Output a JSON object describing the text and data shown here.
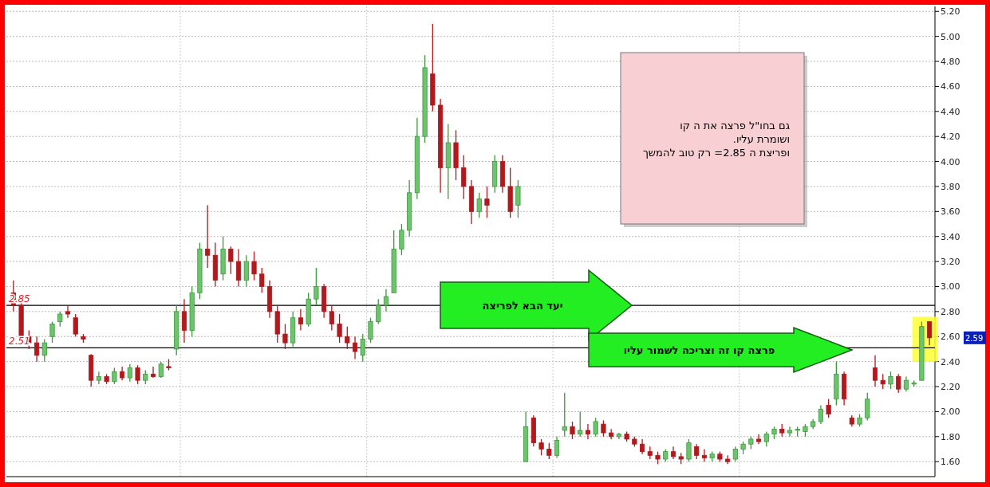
{
  "chart_data": {
    "type": "candlestick",
    "categories": [
      null,
      null,
      null,
      null,
      null,
      null,
      null,
      null,
      null,
      null,
      null,
      null,
      null,
      null,
      null,
      null,
      null,
      null,
      null,
      null,
      null,
      null,
      null,
      null,
      null,
      null,
      null,
      null,
      null,
      null,
      null,
      null,
      null,
      null,
      null,
      null,
      null,
      null,
      null,
      null,
      null,
      null,
      null,
      null,
      null,
      null,
      null,
      null,
      null,
      null,
      null,
      null,
      null,
      null,
      null,
      null,
      null,
      null,
      null,
      null,
      null,
      null,
      null,
      null,
      null,
      null,
      null,
      null,
      null,
      null,
      null,
      null,
      null,
      null,
      null,
      null,
      null,
      null,
      null,
      null,
      null,
      null,
      null,
      null,
      null,
      null,
      null,
      null,
      null,
      null,
      null,
      null,
      null,
      null,
      null,
      null,
      null,
      null,
      null,
      null,
      null,
      null,
      null,
      null,
      null,
      null,
      null,
      null,
      null,
      null,
      null,
      null,
      null,
      null,
      null,
      null,
      null,
      null,
      null
    ],
    "ohlc": [
      [
        2.95,
        3.05,
        2.8,
        2.85
      ],
      [
        2.85,
        2.9,
        2.55,
        2.6
      ],
      [
        2.6,
        2.65,
        2.5,
        2.55
      ],
      [
        2.55,
        2.6,
        2.4,
        2.45
      ],
      [
        2.45,
        2.58,
        2.4,
        2.55
      ],
      [
        2.6,
        2.72,
        2.55,
        2.7
      ],
      [
        2.72,
        2.8,
        2.68,
        2.78
      ],
      [
        2.8,
        2.85,
        2.75,
        2.78
      ],
      [
        2.75,
        2.78,
        2.6,
        2.62
      ],
      [
        2.6,
        2.62,
        2.55,
        2.58
      ],
      [
        2.45,
        2.46,
        2.2,
        2.25
      ],
      [
        2.25,
        2.32,
        2.22,
        2.28
      ],
      [
        2.28,
        2.3,
        2.22,
        2.24
      ],
      [
        2.24,
        2.35,
        2.22,
        2.32
      ],
      [
        2.32,
        2.36,
        2.25,
        2.27
      ],
      [
        2.27,
        2.38,
        2.24,
        2.35
      ],
      [
        2.35,
        2.37,
        2.22,
        2.25
      ],
      [
        2.25,
        2.33,
        2.22,
        2.3
      ],
      [
        2.3,
        2.36,
        2.27,
        2.28
      ],
      [
        2.28,
        2.4,
        2.27,
        2.38
      ],
      [
        2.36,
        2.42,
        2.33,
        2.35
      ],
      [
        2.5,
        2.85,
        2.45,
        2.8
      ],
      [
        2.8,
        2.9,
        2.55,
        2.65
      ],
      [
        2.65,
        3.0,
        2.6,
        2.95
      ],
      [
        2.95,
        3.35,
        2.9,
        3.3
      ],
      [
        3.3,
        3.65,
        3.15,
        3.25
      ],
      [
        3.25,
        3.35,
        3.0,
        3.05
      ],
      [
        3.1,
        3.4,
        3.05,
        3.3
      ],
      [
        3.3,
        3.32,
        3.1,
        3.2
      ],
      [
        3.2,
        3.3,
        3.0,
        3.05
      ],
      [
        3.05,
        3.25,
        3.0,
        3.2
      ],
      [
        3.2,
        3.28,
        3.05,
        3.1
      ],
      [
        3.1,
        3.15,
        2.95,
        3.0
      ],
      [
        3.0,
        3.05,
        2.75,
        2.8
      ],
      [
        2.8,
        2.85,
        2.55,
        2.62
      ],
      [
        2.62,
        2.7,
        2.5,
        2.55
      ],
      [
        2.55,
        2.8,
        2.52,
        2.75
      ],
      [
        2.75,
        2.82,
        2.65,
        2.7
      ],
      [
        2.7,
        2.95,
        2.68,
        2.9
      ],
      [
        2.9,
        3.15,
        2.85,
        3.0
      ],
      [
        3.0,
        3.02,
        2.75,
        2.8
      ],
      [
        2.8,
        2.85,
        2.65,
        2.7
      ],
      [
        2.7,
        2.78,
        2.55,
        2.6
      ],
      [
        2.6,
        2.68,
        2.5,
        2.55
      ],
      [
        2.55,
        2.6,
        2.42,
        2.48
      ],
      [
        2.45,
        2.62,
        2.4,
        2.58
      ],
      [
        2.58,
        2.75,
        2.55,
        2.72
      ],
      [
        2.72,
        2.9,
        2.7,
        2.85
      ],
      [
        2.85,
        2.98,
        2.8,
        2.92
      ],
      [
        2.95,
        3.45,
        2.95,
        3.3
      ],
      [
        3.3,
        3.5,
        3.25,
        3.45
      ],
      [
        3.45,
        3.85,
        3.4,
        3.75
      ],
      [
        3.75,
        4.35,
        3.7,
        4.2
      ],
      [
        4.2,
        4.85,
        4.15,
        4.75
      ],
      [
        4.7,
        5.1,
        4.4,
        4.45
      ],
      [
        4.45,
        4.5,
        3.75,
        3.95
      ],
      [
        3.95,
        4.3,
        3.7,
        4.15
      ],
      [
        4.15,
        4.25,
        3.85,
        3.95
      ],
      [
        3.95,
        4.05,
        3.7,
        3.8
      ],
      [
        3.8,
        3.85,
        3.5,
        3.6
      ],
      [
        3.6,
        3.75,
        3.55,
        3.7
      ],
      [
        3.7,
        3.8,
        3.55,
        3.65
      ],
      [
        3.8,
        4.05,
        3.75,
        4.0
      ],
      [
        4.0,
        4.05,
        3.75,
        3.8
      ],
      [
        3.8,
        3.95,
        3.55,
        3.6
      ],
      [
        3.65,
        3.85,
        3.55,
        3.8
      ],
      [
        1.6,
        2.0,
        1.6,
        1.88
      ],
      [
        1.95,
        1.97,
        1.72,
        1.75
      ],
      [
        1.75,
        1.78,
        1.65,
        1.7
      ],
      [
        1.7,
        1.75,
        1.62,
        1.65
      ],
      [
        1.65,
        1.8,
        1.63,
        1.77
      ],
      [
        1.85,
        2.15,
        1.8,
        1.88
      ],
      [
        1.88,
        1.92,
        1.78,
        1.82
      ],
      [
        1.82,
        2.0,
        1.8,
        1.85
      ],
      [
        1.85,
        1.9,
        1.78,
        1.82
      ],
      [
        1.82,
        1.95,
        1.8,
        1.92
      ],
      [
        1.9,
        1.93,
        1.8,
        1.83
      ],
      [
        1.83,
        1.86,
        1.78,
        1.8
      ],
      [
        1.8,
        1.83,
        1.78,
        1.82
      ],
      [
        1.82,
        1.84,
        1.76,
        1.78
      ],
      [
        1.78,
        1.8,
        1.72,
        1.74
      ],
      [
        1.74,
        1.78,
        1.66,
        1.68
      ],
      [
        1.68,
        1.72,
        1.62,
        1.65
      ],
      [
        1.65,
        1.68,
        1.58,
        1.62
      ],
      [
        1.62,
        1.7,
        1.6,
        1.68
      ],
      [
        1.68,
        1.72,
        1.62,
        1.64
      ],
      [
        1.64,
        1.67,
        1.58,
        1.62
      ],
      [
        1.62,
        1.78,
        1.6,
        1.75
      ],
      [
        1.72,
        1.74,
        1.62,
        1.65
      ],
      [
        1.65,
        1.7,
        1.6,
        1.63
      ],
      [
        1.63,
        1.68,
        1.6,
        1.66
      ],
      [
        1.66,
        1.68,
        1.6,
        1.62
      ],
      [
        1.62,
        1.65,
        1.58,
        1.6
      ],
      [
        1.62,
        1.72,
        1.6,
        1.7
      ],
      [
        1.7,
        1.76,
        1.66,
        1.74
      ],
      [
        1.74,
        1.8,
        1.7,
        1.78
      ],
      [
        1.78,
        1.82,
        1.74,
        1.76
      ],
      [
        1.76,
        1.84,
        1.72,
        1.82
      ],
      [
        1.82,
        1.88,
        1.78,
        1.86
      ],
      [
        1.86,
        1.9,
        1.8,
        1.83
      ],
      [
        1.83,
        1.88,
        1.8,
        1.85
      ],
      [
        1.85,
        1.88,
        1.8,
        1.86
      ],
      [
        1.84,
        1.9,
        1.8,
        1.88
      ],
      [
        1.88,
        1.94,
        1.86,
        1.92
      ],
      [
        1.92,
        2.05,
        1.9,
        2.02
      ],
      [
        2.05,
        2.1,
        1.95,
        1.98
      ],
      [
        2.1,
        2.4,
        2.05,
        2.3
      ],
      [
        2.3,
        2.32,
        2.05,
        2.1
      ],
      [
        1.95,
        1.97,
        1.88,
        1.9
      ],
      [
        1.9,
        1.98,
        1.88,
        1.95
      ],
      [
        1.95,
        2.15,
        1.93,
        2.1
      ],
      [
        2.35,
        2.45,
        2.2,
        2.25
      ],
      [
        2.25,
        2.3,
        2.18,
        2.22
      ],
      [
        2.22,
        2.32,
        2.18,
        2.28
      ],
      [
        2.28,
        2.3,
        2.15,
        2.18
      ],
      [
        2.18,
        2.28,
        2.16,
        2.25
      ],
      [
        2.22,
        2.25,
        2.2,
        2.23
      ],
      [
        2.25,
        2.72,
        2.25,
        2.68
      ],
      [
        2.72,
        2.72,
        2.53,
        2.59
      ]
    ],
    "ylim": [
      1.48,
      5.24
    ],
    "yticks": [
      {
        "value": 1.6,
        "label": "1.60"
      },
      {
        "value": 1.8,
        "label": "1.80"
      },
      {
        "value": 2.0,
        "label": "2.00"
      },
      {
        "value": 2.2,
        "label": "2.20"
      },
      {
        "value": 2.4,
        "label": "2.40"
      },
      {
        "value": 2.6,
        "label": "2.60"
      },
      {
        "value": 2.8,
        "label": "2.80"
      },
      {
        "value": 3.0,
        "label": "3.00"
      },
      {
        "value": 3.2,
        "label": "3.20"
      },
      {
        "value": 3.4,
        "label": "3.40"
      },
      {
        "value": 3.6,
        "label": "3.60"
      },
      {
        "value": 3.8,
        "label": "3.80"
      },
      {
        "value": 4.0,
        "label": "4.00"
      },
      {
        "value": 4.2,
        "label": "4.20"
      },
      {
        "value": 4.4,
        "label": "4.40"
      },
      {
        "value": 4.6,
        "label": "4.60"
      },
      {
        "value": 4.8,
        "label": "4.80"
      },
      {
        "value": 5.0,
        "label": "5.00"
      },
      {
        "value": 5.2,
        "label": "5.20"
      }
    ],
    "grid": true,
    "ref_lines": [
      {
        "axis": "y",
        "value": 2.85,
        "label": "2.85",
        "color": "#000000"
      },
      {
        "axis": "y",
        "value": 2.51,
        "label": "2.51",
        "color": "#000000"
      }
    ],
    "annotations": [
      "גם בחו\"ל פרצה את ה קו\nושומרת עליו.\nופריצת ה 2.85= רק טוב להמשך",
      "יעד הבא לפריצה",
      "פרצה קו זה וצריכה לשמור עליו",
      "2.59"
    ]
  }
}
